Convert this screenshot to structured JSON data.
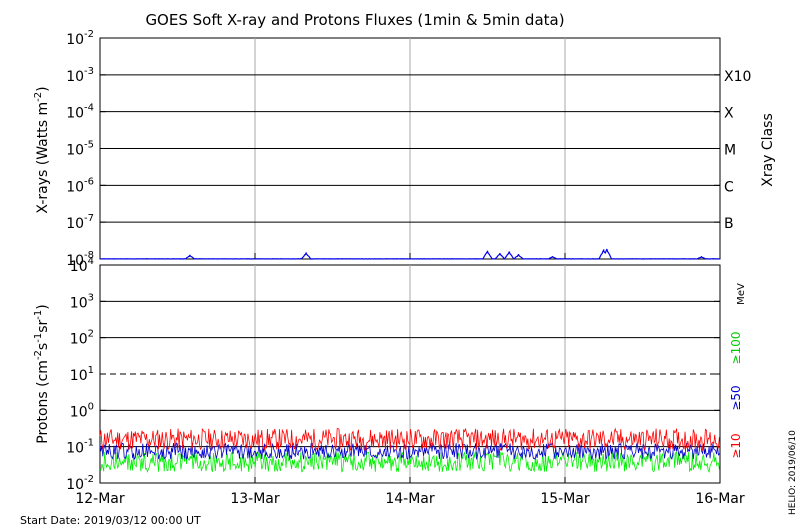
{
  "title": "GOES Soft X-ray and Protons Fluxes   (1min & 5min data)",
  "start_date": "Start Date: 2019/03/12 00:00 UT",
  "footer_right": "HELIO: 2019/06/10",
  "colors": {
    "xray": "#0000ee",
    "p10": "#ff0000",
    "p50": "#0000cc",
    "p100": "#00ee00",
    "grid": "#000000",
    "day_line": "#aaaaaa"
  },
  "chart_data": [
    {
      "type": "line",
      "panel": "xray",
      "ylabel_main": "X-rays (Watts m",
      "ylabel_sup": "-2",
      "ylabel_end": ")",
      "yscale": "log",
      "ylim": [
        1e-08,
        0.01
      ],
      "ytick_labels": [
        {
          "base": "10",
          "exp": "-8"
        },
        {
          "base": "10",
          "exp": "-7"
        },
        {
          "base": "10",
          "exp": "-6"
        },
        {
          "base": "10",
          "exp": "-5"
        },
        {
          "base": "10",
          "exp": "-4"
        },
        {
          "base": "10",
          "exp": "-3"
        },
        {
          "base": "10",
          "exp": "-2"
        }
      ],
      "class_labels": [
        "B",
        "C",
        "M",
        "X",
        "X10"
      ],
      "class_title": "Xray Class",
      "grid": true,
      "bursts": [
        {
          "day": 0.58,
          "flux": 1.25e-08
        },
        {
          "day": 1.33,
          "flux": 1.45e-08
        },
        {
          "day": 2.5,
          "flux": 1.6e-08
        },
        {
          "day": 2.58,
          "flux": 1.4e-08
        },
        {
          "day": 2.64,
          "flux": 1.55e-08
        },
        {
          "day": 2.7,
          "flux": 1.3e-08
        },
        {
          "day": 2.92,
          "flux": 1.15e-08
        },
        {
          "day": 3.25,
          "flux": 1.75e-08
        },
        {
          "day": 3.27,
          "flux": 1.8e-08
        },
        {
          "day": 3.88,
          "flux": 1.15e-08
        }
      ]
    },
    {
      "type": "line",
      "panel": "protons",
      "ylabel_main": "Protons (cm",
      "ylabel_sup1": "-2",
      "ylabel_mid1": "s",
      "ylabel_sup2": "-1",
      "ylabel_mid2": "sr",
      "ylabel_sup3": "-1",
      "ylabel_end": ")",
      "yscale": "log",
      "ylim": [
        0.01,
        10000
      ],
      "ytick_labels": [
        {
          "base": "10",
          "exp": "-2"
        },
        {
          "base": "10",
          "exp": "-1"
        },
        {
          "base": "10",
          "exp": "0"
        },
        {
          "base": "10",
          "exp": "1"
        },
        {
          "base": "10",
          "exp": "2"
        },
        {
          "base": "10",
          "exp": "3"
        },
        {
          "base": "10",
          "exp": "4"
        }
      ],
      "threshold": 10,
      "series": [
        {
          "name": "≥10",
          "color": "#ff0000",
          "baseline": 0.16,
          "spread": 0.6
        },
        {
          "name": "≥50",
          "color": "#0000cc",
          "baseline": 0.075,
          "spread": 0.45
        },
        {
          "name": "≥100",
          "color": "#00ee00",
          "baseline": 0.038,
          "spread": 0.55
        }
      ],
      "energy_unit": "MeV",
      "grid": true
    }
  ],
  "x_axis": {
    "ticks": [
      "12-Mar",
      "13-Mar",
      "14-Mar",
      "15-Mar",
      "16-Mar"
    ]
  }
}
